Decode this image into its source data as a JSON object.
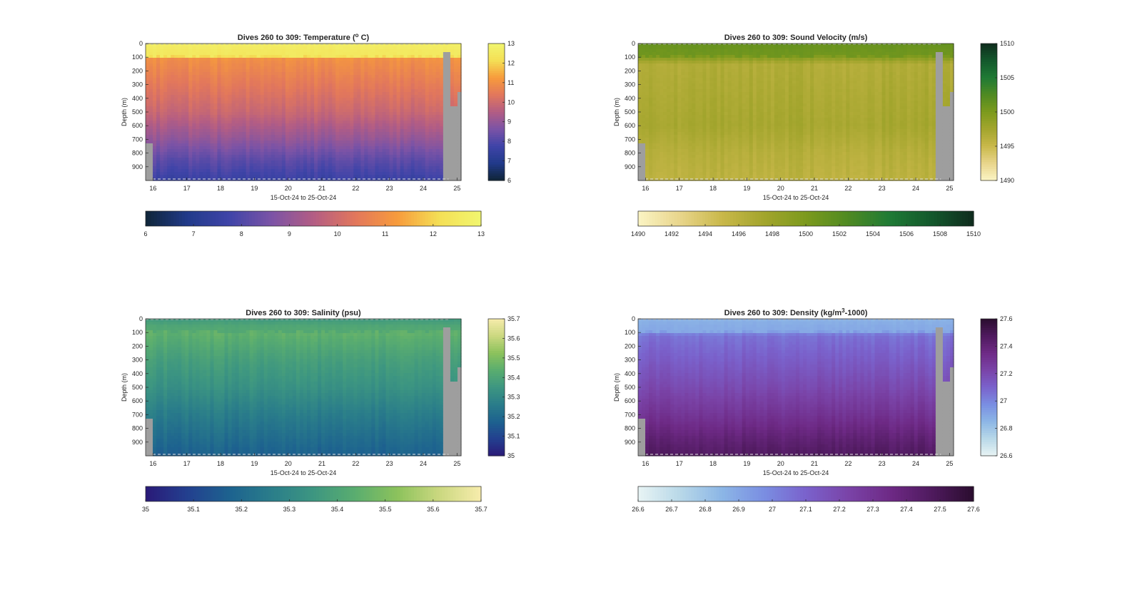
{
  "figure": {
    "background": "#ffffff",
    "nodata_color": "#9e9e9e",
    "axes_color": "#262626"
  },
  "chart_data": [
    {
      "type": "heatmap",
      "title_pre": "Dives 260 to 309: Temperature (",
      "title_sup": "o",
      "title_post": " C)",
      "xlabel": "15-Oct-24 to 25-Oct-24",
      "ylabel": "Depth (m)",
      "xticks": [
        "16",
        "17",
        "18",
        "19",
        "20",
        "21",
        "22",
        "23",
        "24",
        "25"
      ],
      "yticks": [
        "0",
        "100",
        "200",
        "300",
        "400",
        "500",
        "600",
        "700",
        "800",
        "900"
      ],
      "xlim": [
        15.78,
        25.12
      ],
      "ylim": [
        0,
        1000
      ],
      "colorbar_ticks": [
        "6",
        "7",
        "8",
        "9",
        "10",
        "11",
        "12",
        "13"
      ],
      "hbar_ticks": [
        "6",
        "7",
        "8",
        "9",
        "10",
        "11",
        "12",
        "13"
      ],
      "clim": [
        6,
        13
      ],
      "colormap": [
        "#0f2538",
        "#213a8a",
        "#3f44a8",
        "#7b53a6",
        "#b35d84",
        "#e2775c",
        "#f79b3c",
        "#f4df55",
        "#f1f66f"
      ],
      "depth_profile": [
        [
          0,
          12.7
        ],
        [
          90,
          12.4
        ],
        [
          110,
          11.0
        ],
        [
          250,
          10.6
        ],
        [
          500,
          9.9
        ],
        [
          700,
          9.0
        ],
        [
          850,
          8.2
        ],
        [
          1000,
          7.6
        ]
      ],
      "missing_region": "last dive columns (~24.6 to 25.1) grey below upper water column"
    },
    {
      "type": "heatmap",
      "title_pre": "Dives 260 to 309: Sound Velocity (m/s)",
      "title_sup": "",
      "title_post": "",
      "xlabel": "15-Oct-24 to 25-Oct-24",
      "ylabel": "Depth (m)",
      "xticks": [
        "16",
        "17",
        "18",
        "19",
        "20",
        "21",
        "22",
        "23",
        "24",
        "25"
      ],
      "yticks": [
        "0",
        "100",
        "200",
        "300",
        "400",
        "500",
        "600",
        "700",
        "800",
        "900"
      ],
      "xlim": [
        15.78,
        25.12
      ],
      "ylim": [
        0,
        1000
      ],
      "colorbar_ticks": [
        "1490",
        "1495",
        "1500",
        "1505",
        "1510"
      ],
      "hbar_ticks": [
        "1490",
        "1492",
        "1494",
        "1496",
        "1498",
        "1500",
        "1502",
        "1504",
        "1506",
        "1508",
        "1510"
      ],
      "clim": [
        1490,
        1510
      ],
      "colormap": [
        "#fbf4c4",
        "#e8d58b",
        "#c9b84a",
        "#a3a52d",
        "#7c9a1d",
        "#4f8a22",
        "#1f7a35",
        "#13582c",
        "#0f2c1d"
      ],
      "depth_profile": [
        [
          0,
          1501.2
        ],
        [
          80,
          1500.6
        ],
        [
          150,
          1496.6
        ],
        [
          400,
          1497.0
        ],
        [
          600,
          1497.3
        ],
        [
          800,
          1496.3
        ],
        [
          1000,
          1495.8
        ]
      ],
      "missing_region": "last dive columns (~24.6 to 25.1) grey below upper water column"
    },
    {
      "type": "heatmap",
      "title_pre": "Dives 260 to 309: Salinity (psu)",
      "title_sup": "",
      "title_post": "",
      "xlabel": "15-Oct-24 to 25-Oct-24",
      "ylabel": "Depth (m)",
      "xticks": [
        "16",
        "17",
        "18",
        "19",
        "20",
        "21",
        "22",
        "23",
        "24",
        "25"
      ],
      "yticks": [
        "0",
        "100",
        "200",
        "300",
        "400",
        "500",
        "600",
        "700",
        "800",
        "900"
      ],
      "xlim": [
        15.78,
        25.12
      ],
      "ylim": [
        0,
        1000
      ],
      "colorbar_ticks": [
        "35",
        "35.1",
        "35.2",
        "35.3",
        "35.4",
        "35.5",
        "35.6",
        "35.7"
      ],
      "hbar_ticks": [
        "35",
        "35.1",
        "35.2",
        "35.3",
        "35.4",
        "35.5",
        "35.6",
        "35.7"
      ],
      "clim": [
        35,
        35.7
      ],
      "colormap": [
        "#2a1a78",
        "#23408f",
        "#1d628f",
        "#2a7d8a",
        "#3d9681",
        "#5aad6f",
        "#8cc25c",
        "#cbd880",
        "#f7ecac"
      ],
      "depth_profile": [
        [
          0,
          35.36
        ],
        [
          100,
          35.45
        ],
        [
          300,
          35.38
        ],
        [
          500,
          35.33
        ],
        [
          700,
          35.26
        ],
        [
          900,
          35.2
        ],
        [
          1000,
          35.17
        ]
      ],
      "missing_region": "last dive columns (~24.6 to 25.1) grey below upper water column"
    },
    {
      "type": "heatmap",
      "title_pre": "Dives 260 to 309: Density (kg/m",
      "title_sup": "3",
      "title_post": "-1000)",
      "xlabel": "15-Oct-24 to 25-Oct-24",
      "ylabel": "Depth (m)",
      "xticks": [
        "16",
        "17",
        "18",
        "19",
        "20",
        "21",
        "22",
        "23",
        "24",
        "25"
      ],
      "yticks": [
        "0",
        "100",
        "200",
        "300",
        "400",
        "500",
        "600",
        "700",
        "800",
        "900"
      ],
      "xlim": [
        15.78,
        25.12
      ],
      "ylim": [
        0,
        1000
      ],
      "colorbar_ticks": [
        "26.6",
        "26.8",
        "27",
        "27.2",
        "27.4",
        "27.6"
      ],
      "hbar_ticks": [
        "26.6",
        "26.7",
        "26.8",
        "26.9",
        "27",
        "27.1",
        "27.2",
        "27.3",
        "27.4",
        "27.5",
        "27.6"
      ],
      "clim": [
        26.6,
        27.6
      ],
      "colormap": [
        "#e8f4f4",
        "#b8d8e8",
        "#8cb6e6",
        "#7a8ee2",
        "#7a62cc",
        "#7a44a8",
        "#6e2a86",
        "#4f1a5e",
        "#2a0d2e"
      ],
      "depth_profile": [
        [
          0,
          26.86
        ],
        [
          90,
          26.9
        ],
        [
          120,
          27.05
        ],
        [
          300,
          27.12
        ],
        [
          500,
          27.2
        ],
        [
          700,
          27.3
        ],
        [
          900,
          27.42
        ],
        [
          1000,
          27.47
        ]
      ],
      "missing_region": "last dive columns (~24.6 to 25.1) grey below upper water column"
    }
  ]
}
